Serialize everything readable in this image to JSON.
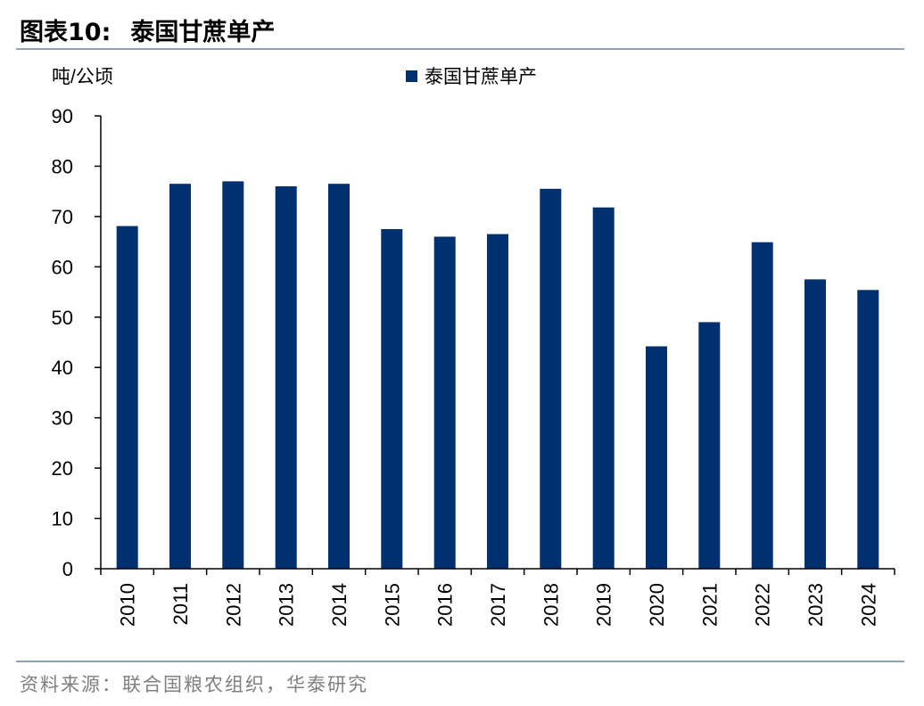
{
  "header": {
    "figure_label": "图表10:",
    "title": "泰国甘蔗单产"
  },
  "footer": {
    "source": "资料来源：联合国粮农组织，华泰研究"
  },
  "colors": {
    "bar": "#003070",
    "rule": "#8da2bb",
    "axis": "#000000",
    "source_text": "#7f7f7f"
  },
  "chart_data": {
    "type": "bar",
    "title": "泰国甘蔗单产",
    "ylabel": "吨/公顷",
    "xlabel": "",
    "categories": [
      "2010",
      "2011",
      "2012",
      "2013",
      "2014",
      "2015",
      "2016",
      "2017",
      "2018",
      "2019",
      "2020",
      "2021",
      "2022",
      "2023",
      "2024"
    ],
    "series": [
      {
        "name": "泰国甘蔗单产",
        "values": [
          68.1,
          76.5,
          77.0,
          76.0,
          76.5,
          67.5,
          66.0,
          66.5,
          75.5,
          71.8,
          44.2,
          49.0,
          64.9,
          57.5,
          55.4
        ]
      }
    ],
    "ylim": [
      0,
      90
    ],
    "yticks": [
      0,
      10,
      20,
      30,
      40,
      50,
      60,
      70,
      80,
      90
    ],
    "grid": false,
    "legend_position": "top-center"
  }
}
